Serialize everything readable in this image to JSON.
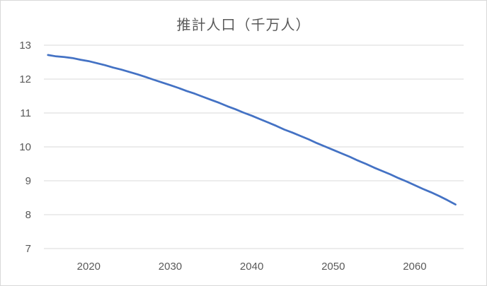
{
  "chart_data": {
    "type": "line",
    "title": "推計人口（千万人）",
    "xlabel": "",
    "ylabel": "",
    "xlim": [
      2014.5,
      2066
    ],
    "ylim": [
      7,
      13
    ],
    "x_ticks": [
      2020,
      2030,
      2040,
      2050,
      2060
    ],
    "y_ticks": [
      7,
      8,
      9,
      10,
      11,
      12,
      13
    ],
    "grid": "horizontal",
    "legend": "none",
    "color": "#4472c4",
    "series": [
      {
        "x": [
          2015,
          2016,
          2017,
          2018,
          2019,
          2020,
          2021,
          2022,
          2023,
          2024,
          2025,
          2026,
          2027,
          2028,
          2029,
          2030,
          2031,
          2032,
          2033,
          2034,
          2035,
          2036,
          2037,
          2038,
          2039,
          2040,
          2041,
          2042,
          2043,
          2044,
          2045,
          2046,
          2047,
          2048,
          2049,
          2050,
          2051,
          2052,
          2053,
          2054,
          2055,
          2056,
          2057,
          2058,
          2059,
          2060,
          2061,
          2062,
          2063,
          2064,
          2065
        ],
        "values": [
          12.71,
          12.67,
          12.65,
          12.62,
          12.57,
          12.53,
          12.47,
          12.41,
          12.34,
          12.28,
          12.21,
          12.14,
          12.06,
          11.98,
          11.9,
          11.82,
          11.74,
          11.65,
          11.57,
          11.48,
          11.39,
          11.3,
          11.2,
          11.11,
          11.01,
          10.92,
          10.82,
          10.72,
          10.62,
          10.51,
          10.42,
          10.32,
          10.22,
          10.11,
          10.01,
          9.91,
          9.81,
          9.71,
          9.6,
          9.5,
          9.39,
          9.29,
          9.19,
          9.08,
          8.98,
          8.87,
          8.76,
          8.66,
          8.55,
          8.43,
          8.3
        ]
      }
    ]
  }
}
